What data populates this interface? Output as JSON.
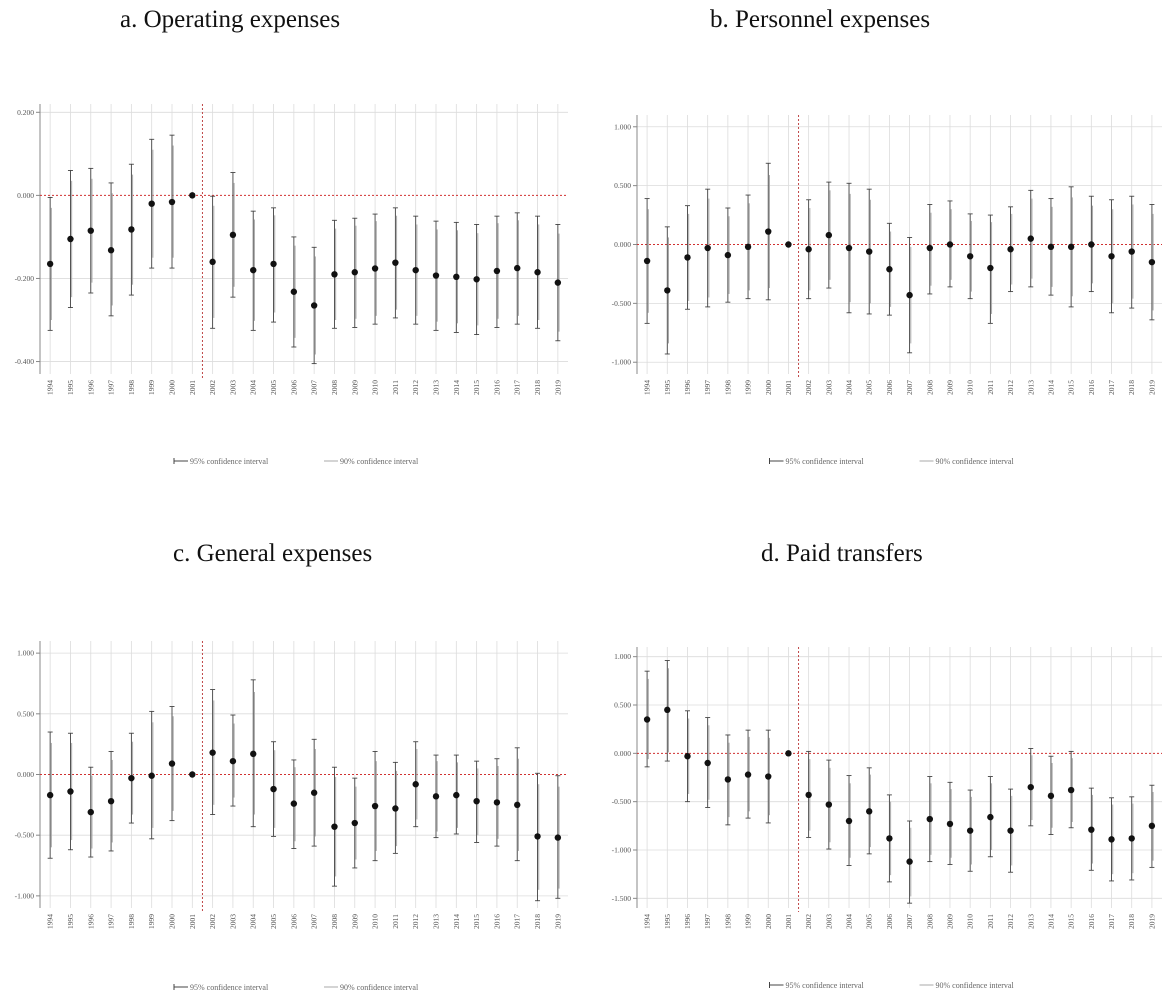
{
  "colors": {
    "grid": "#dcdcdc",
    "zero_line": "#d03030",
    "vline": "#c04848",
    "ci95": "#444444",
    "ci90": "#aaaaaa",
    "point": "#111111"
  },
  "legend": {
    "ci95_label": "95% confidence interval",
    "ci90_label": "90% confidence interval"
  },
  "chart_data": [
    {
      "type": "scatter",
      "title": "a.   Operating expenses",
      "x": [
        "1994",
        "1995",
        "1996",
        "1997",
        "1998",
        "1999",
        "2000",
        "2001",
        "2002",
        "2003",
        "2004",
        "2005",
        "2006",
        "2007",
        "2008",
        "2009",
        "2010",
        "2011",
        "2012",
        "2013",
        "2014",
        "2015",
        "2016",
        "2017",
        "2018",
        "2019"
      ],
      "ylim": [
        -0.43,
        0.22
      ],
      "yticks": [
        0.2,
        0.0,
        -0.2,
        -0.4
      ],
      "ytick_labels": [
        "0.200",
        "0.000",
        "-0.200",
        "-0.400"
      ],
      "reference_year": "2001",
      "grid": true,
      "legend_position": "bottom",
      "series": [
        {
          "estimate": [
            -0.165,
            -0.105,
            -0.085,
            -0.132,
            -0.082,
            -0.02,
            -0.016,
            0.0,
            -0.16,
            -0.095,
            -0.18,
            -0.165,
            -0.232,
            -0.265,
            -0.19,
            -0.185,
            -0.176,
            -0.162,
            -0.18,
            -0.193,
            -0.196,
            -0.202,
            -0.182,
            -0.175,
            -0.185,
            -0.21
          ],
          "ci95_low": [
            -0.325,
            -0.27,
            -0.235,
            -0.29,
            -0.24,
            -0.175,
            -0.175,
            0.0,
            -0.32,
            -0.245,
            -0.325,
            -0.305,
            -0.365,
            -0.405,
            -0.32,
            -0.318,
            -0.31,
            -0.295,
            -0.31,
            -0.325,
            -0.33,
            -0.335,
            -0.318,
            -0.31,
            -0.32,
            -0.35
          ],
          "ci95_high": [
            -0.005,
            0.06,
            0.065,
            0.03,
            0.075,
            0.135,
            0.145,
            0.0,
            -0.002,
            0.055,
            -0.038,
            -0.03,
            -0.1,
            -0.125,
            -0.06,
            -0.055,
            -0.045,
            -0.03,
            -0.05,
            -0.062,
            -0.065,
            -0.07,
            -0.05,
            -0.042,
            -0.05,
            -0.07
          ],
          "ci90_low": [
            -0.3,
            -0.245,
            -0.21,
            -0.265,
            -0.215,
            -0.15,
            -0.15,
            0.0,
            -0.295,
            -0.22,
            -0.302,
            -0.282,
            -0.343,
            -0.383,
            -0.3,
            -0.297,
            -0.29,
            -0.275,
            -0.29,
            -0.304,
            -0.308,
            -0.313,
            -0.297,
            -0.29,
            -0.3,
            -0.328
          ],
          "ci90_high": [
            -0.03,
            0.035,
            0.04,
            0.005,
            0.05,
            0.11,
            0.12,
            0.0,
            -0.025,
            0.03,
            -0.058,
            -0.048,
            -0.121,
            -0.147,
            -0.08,
            -0.073,
            -0.062,
            -0.049,
            -0.07,
            -0.082,
            -0.084,
            -0.091,
            -0.067,
            -0.06,
            -0.07,
            -0.092
          ]
        }
      ]
    },
    {
      "type": "scatter",
      "title": "b. Personnel expenses",
      "x": [
        "1994",
        "1995",
        "1996",
        "1997",
        "1998",
        "1999",
        "2000",
        "2001",
        "2002",
        "2003",
        "2004",
        "2005",
        "2006",
        "2007",
        "2008",
        "2009",
        "2010",
        "2011",
        "2012",
        "2013",
        "2014",
        "2015",
        "2016",
        "2017",
        "2018",
        "2019"
      ],
      "ylim": [
        -1.1,
        1.1
      ],
      "yticks": [
        1.0,
        0.5,
        0.0,
        -0.5,
        -1.0
      ],
      "ytick_labels": [
        "1.000",
        "0.500",
        "0.000",
        "-0.500",
        "-1.000"
      ],
      "reference_year": "2001",
      "grid": true,
      "legend_position": "bottom",
      "series": [
        {
          "estimate": [
            -0.14,
            -0.39,
            -0.11,
            -0.03,
            -0.09,
            -0.02,
            0.11,
            0.0,
            -0.04,
            0.08,
            -0.03,
            -0.06,
            -0.21,
            -0.43,
            -0.03,
            0.0,
            -0.1,
            -0.2,
            -0.04,
            0.05,
            -0.02,
            -0.02,
            0.0,
            -0.1,
            -0.06,
            -0.15
          ],
          "ci95_low": [
            -0.67,
            -0.93,
            -0.55,
            -0.53,
            -0.49,
            -0.46,
            -0.47,
            0.0,
            -0.46,
            -0.37,
            -0.58,
            -0.59,
            -0.6,
            -0.92,
            -0.42,
            -0.36,
            -0.46,
            -0.67,
            -0.4,
            -0.36,
            -0.43,
            -0.53,
            -0.4,
            -0.58,
            -0.54,
            -0.64
          ],
          "ci95_high": [
            0.39,
            0.15,
            0.33,
            0.47,
            0.31,
            0.42,
            0.69,
            0.0,
            0.38,
            0.53,
            0.52,
            0.47,
            0.18,
            0.06,
            0.34,
            0.37,
            0.26,
            0.25,
            0.32,
            0.46,
            0.39,
            0.49,
            0.41,
            0.38,
            0.41,
            0.34
          ],
          "ci90_low": [
            -0.58,
            -0.84,
            -0.48,
            -0.45,
            -0.42,
            -0.39,
            -0.37,
            0.0,
            -0.39,
            -0.3,
            -0.49,
            -0.5,
            -0.53,
            -0.84,
            -0.35,
            -0.3,
            -0.4,
            -0.59,
            -0.34,
            -0.29,
            -0.36,
            -0.44,
            -0.33,
            -0.5,
            -0.46,
            -0.56
          ],
          "ci90_high": [
            0.3,
            0.06,
            0.26,
            0.39,
            0.24,
            0.35,
            0.59,
            0.0,
            0.31,
            0.46,
            0.43,
            0.38,
            0.11,
            -0.02,
            0.27,
            0.3,
            0.2,
            0.19,
            0.26,
            0.39,
            0.32,
            0.4,
            0.33,
            0.3,
            0.34,
            0.26
          ]
        }
      ]
    },
    {
      "type": "scatter",
      "title": "c. General expenses",
      "x": [
        "1994",
        "1995",
        "1996",
        "1997",
        "1998",
        "1999",
        "2000",
        "2001",
        "2002",
        "2003",
        "2004",
        "2005",
        "2006",
        "2007",
        "2008",
        "2009",
        "2010",
        "2011",
        "2012",
        "2013",
        "2014",
        "2015",
        "2016",
        "2017",
        "2018",
        "2019"
      ],
      "ylim": [
        -1.1,
        1.1
      ],
      "yticks": [
        1.0,
        0.5,
        0.0,
        -0.5,
        -1.0
      ],
      "ytick_labels": [
        "1.000",
        "0.500",
        "0.000",
        "-0.500",
        "-1.000"
      ],
      "reference_year": "2001",
      "grid": true,
      "legend_position": "bottom",
      "series": [
        {
          "estimate": [
            -0.17,
            -0.14,
            -0.31,
            -0.22,
            -0.03,
            -0.01,
            0.09,
            0.0,
            0.18,
            0.11,
            0.17,
            -0.12,
            -0.24,
            -0.15,
            -0.43,
            -0.4,
            -0.26,
            -0.28,
            -0.08,
            -0.18,
            -0.17,
            -0.22,
            -0.23,
            -0.25,
            -0.51,
            -0.52
          ],
          "ci95_low": [
            -0.69,
            -0.62,
            -0.68,
            -0.63,
            -0.4,
            -0.53,
            -0.38,
            0.0,
            -0.33,
            -0.26,
            -0.43,
            -0.51,
            -0.61,
            -0.59,
            -0.92,
            -0.77,
            -0.71,
            -0.65,
            -0.43,
            -0.52,
            -0.49,
            -0.56,
            -0.59,
            -0.71,
            -1.04,
            -1.02
          ],
          "ci95_high": [
            0.35,
            0.34,
            0.06,
            0.19,
            0.34,
            0.52,
            0.56,
            0.0,
            0.7,
            0.49,
            0.78,
            0.27,
            0.12,
            0.29,
            0.06,
            -0.03,
            0.19,
            0.1,
            0.27,
            0.16,
            0.16,
            0.11,
            0.13,
            0.22,
            0.01,
            -0.01
          ],
          "ci90_low": [
            -0.6,
            -0.54,
            -0.61,
            -0.56,
            -0.33,
            -0.44,
            -0.3,
            0.0,
            -0.25,
            -0.19,
            -0.33,
            -0.44,
            -0.55,
            -0.51,
            -0.84,
            -0.7,
            -0.63,
            -0.59,
            -0.37,
            -0.47,
            -0.44,
            -0.5,
            -0.53,
            -0.63,
            -0.95,
            -0.94
          ],
          "ci90_high": [
            0.26,
            0.26,
            -0.01,
            0.12,
            0.27,
            0.43,
            0.48,
            0.0,
            0.61,
            0.42,
            0.68,
            0.2,
            0.06,
            0.21,
            -0.02,
            -0.1,
            0.11,
            0.03,
            0.21,
            0.11,
            0.1,
            0.05,
            0.07,
            0.13,
            -0.08,
            -0.1
          ]
        }
      ]
    },
    {
      "type": "scatter",
      "title": "d. Paid transfers",
      "x": [
        "1994",
        "1995",
        "1996",
        "1997",
        "1998",
        "1999",
        "2000",
        "2001",
        "2002",
        "2003",
        "2004",
        "2005",
        "2006",
        "2007",
        "2008",
        "2009",
        "2010",
        "2011",
        "2012",
        "2013",
        "2014",
        "2015",
        "2016",
        "2017",
        "2018",
        "2019"
      ],
      "ylim": [
        -1.6,
        1.1
      ],
      "yticks": [
        1.0,
        0.5,
        0.0,
        -0.5,
        -1.0,
        -1.5
      ],
      "ytick_labels": [
        "1.000",
        "0.500",
        "0.000",
        "-0.500",
        "-1.000",
        "-1.500"
      ],
      "reference_year": "2001",
      "grid": true,
      "legend_position": "bottom",
      "series": [
        {
          "estimate": [
            0.35,
            0.45,
            -0.03,
            -0.1,
            -0.27,
            -0.22,
            -0.24,
            0.0,
            -0.43,
            -0.53,
            -0.7,
            -0.6,
            -0.88,
            -1.12,
            -0.68,
            -0.73,
            -0.8,
            -0.66,
            -0.8,
            -0.35,
            -0.44,
            -0.38,
            -0.79,
            -0.89,
            -0.88,
            -0.75
          ],
          "ci95_low": [
            -0.14,
            -0.08,
            -0.5,
            -0.56,
            -0.74,
            -0.67,
            -0.72,
            0.0,
            -0.87,
            -0.99,
            -1.16,
            -1.04,
            -1.33,
            -1.55,
            -1.12,
            -1.15,
            -1.22,
            -1.07,
            -1.23,
            -0.75,
            -0.84,
            -0.77,
            -1.21,
            -1.32,
            -1.31,
            -1.18
          ],
          "ci95_high": [
            0.85,
            0.96,
            0.44,
            0.37,
            0.19,
            0.24,
            0.24,
            0.0,
            0.02,
            -0.07,
            -0.23,
            -0.15,
            -0.43,
            -0.7,
            -0.24,
            -0.3,
            -0.38,
            -0.24,
            -0.37,
            0.05,
            -0.03,
            0.02,
            -0.36,
            -0.46,
            -0.45,
            -0.33
          ],
          "ci90_low": [
            -0.06,
            0.01,
            -0.42,
            -0.48,
            -0.66,
            -0.6,
            -0.64,
            0.0,
            -0.8,
            -0.92,
            -1.08,
            -0.97,
            -1.26,
            -1.48,
            -1.05,
            -1.08,
            -1.15,
            -1.0,
            -1.16,
            -0.69,
            -0.77,
            -0.71,
            -1.14,
            -1.25,
            -1.24,
            -1.11
          ],
          "ci90_high": [
            0.77,
            0.88,
            0.36,
            0.29,
            0.11,
            0.17,
            0.16,
            0.0,
            -0.06,
            -0.15,
            -0.31,
            -0.22,
            -0.5,
            -0.77,
            -0.31,
            -0.37,
            -0.45,
            -0.31,
            -0.44,
            -0.02,
            -0.1,
            -0.05,
            -0.43,
            -0.53,
            -0.52,
            -0.4
          ]
        }
      ]
    }
  ]
}
